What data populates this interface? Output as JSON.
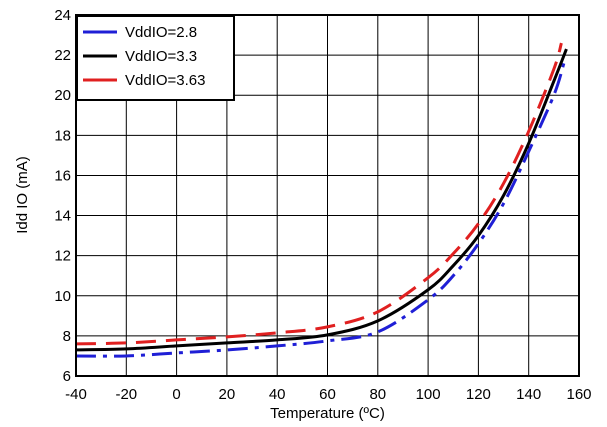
{
  "chart_data": {
    "type": "line",
    "xlabel": "Temperature (ºC)",
    "ylabel": "Idd IO (mA)",
    "xlim": [
      -40,
      160
    ],
    "ylim": [
      6,
      24
    ],
    "xticks": [
      -40,
      -20,
      0,
      20,
      40,
      60,
      80,
      100,
      120,
      140,
      160
    ],
    "yticks": [
      6,
      8,
      10,
      12,
      14,
      16,
      18,
      20,
      22,
      24
    ],
    "grid": true,
    "legend": "top-left",
    "series": [
      {
        "name": "VddIO=2.8",
        "color": "#1f1fd6",
        "dash": "dashdot",
        "x": [
          -40,
          -20,
          0,
          20,
          40,
          60,
          80,
          100,
          110,
          120,
          130,
          140,
          150,
          154
        ],
        "y": [
          7.0,
          7.0,
          7.15,
          7.3,
          7.5,
          7.75,
          8.2,
          9.8,
          11.0,
          12.6,
          14.6,
          17.2,
          20.0,
          21.6
        ]
      },
      {
        "name": "VddIO=3.3",
        "color": "#000000",
        "dash": "solid",
        "x": [
          -40,
          -20,
          0,
          20,
          40,
          60,
          80,
          100,
          110,
          120,
          130,
          140,
          150,
          155
        ],
        "y": [
          7.3,
          7.35,
          7.5,
          7.65,
          7.8,
          8.05,
          8.75,
          10.3,
          11.5,
          13.0,
          15.0,
          17.6,
          20.7,
          22.3
        ]
      },
      {
        "name": "VddIO=3.63",
        "color": "#e02020",
        "dash": "dash",
        "x": [
          -40,
          -20,
          0,
          20,
          40,
          60,
          80,
          100,
          110,
          120,
          130,
          140,
          150,
          153
        ],
        "y": [
          7.6,
          7.65,
          7.8,
          7.95,
          8.15,
          8.45,
          9.2,
          10.9,
          12.1,
          13.6,
          15.6,
          18.2,
          21.3,
          22.6
        ]
      }
    ]
  }
}
